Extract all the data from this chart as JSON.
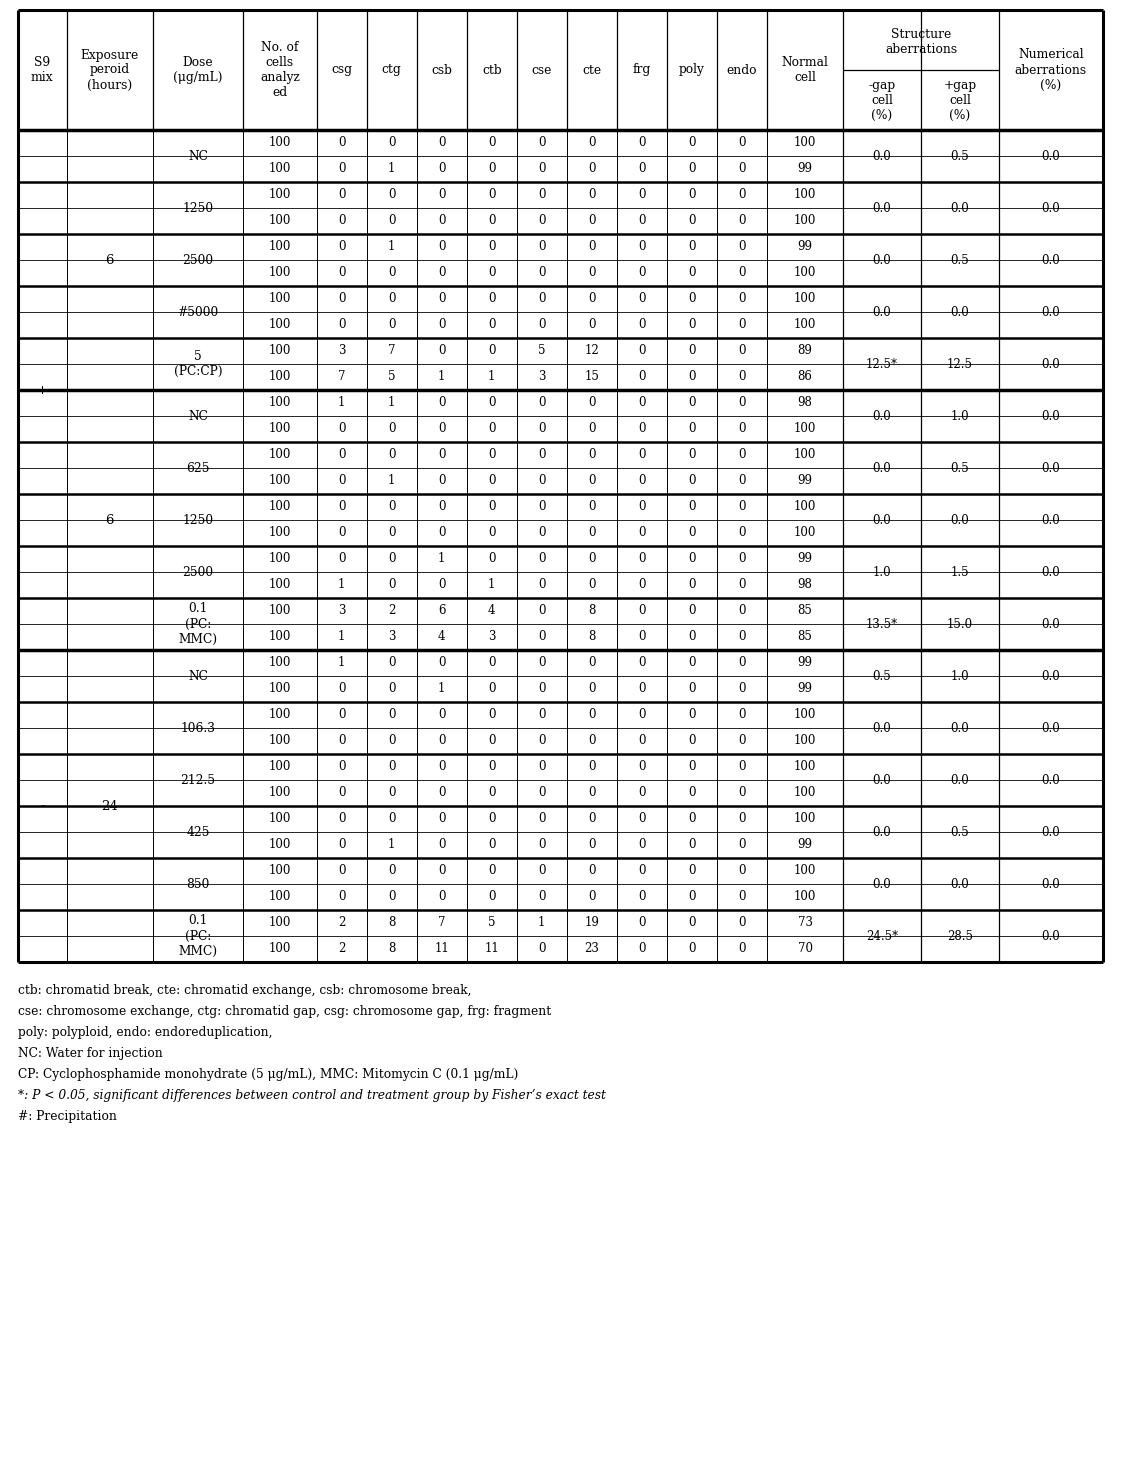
{
  "footnotes": [
    "ctb: chromatid break, cte: chromatid exchange, csb: chromosome break,",
    "cse: chromosome exchange, ctg: chromatid gap, csg: chromosome gap, frg: fragment",
    "poly: polyploid, endo: endoreduplication,",
    "NC: Water for injection",
    "CP: Cyclophosphamide monohydrate (5 μg/mL), MMC: Mitomycin C (0.1 μg/mL)",
    "*: P < 0.05, significant differences between control and treatment group by Fisher’s exact test",
    "#: Precipitation"
  ],
  "col_abbrevs": [
    "csg",
    "ctg",
    "csb",
    "ctb",
    "cse",
    "cte",
    "frg",
    "poly",
    "endo"
  ],
  "rows": [
    [
      "100",
      "0",
      "0",
      "0",
      "0",
      "0",
      "0",
      "0",
      "0",
      "0",
      "100"
    ],
    [
      "100",
      "0",
      "1",
      "0",
      "0",
      "0",
      "0",
      "0",
      "0",
      "0",
      "99"
    ],
    [
      "100",
      "0",
      "0",
      "0",
      "0",
      "0",
      "0",
      "0",
      "0",
      "0",
      "100"
    ],
    [
      "100",
      "0",
      "0",
      "0",
      "0",
      "0",
      "0",
      "0",
      "0",
      "0",
      "100"
    ],
    [
      "100",
      "0",
      "1",
      "0",
      "0",
      "0",
      "0",
      "0",
      "0",
      "0",
      "99"
    ],
    [
      "100",
      "0",
      "0",
      "0",
      "0",
      "0",
      "0",
      "0",
      "0",
      "0",
      "100"
    ],
    [
      "100",
      "0",
      "0",
      "0",
      "0",
      "0",
      "0",
      "0",
      "0",
      "0",
      "100"
    ],
    [
      "100",
      "0",
      "0",
      "0",
      "0",
      "0",
      "0",
      "0",
      "0",
      "0",
      "100"
    ],
    [
      "100",
      "3",
      "7",
      "0",
      "0",
      "5",
      "12",
      "0",
      "0",
      "0",
      "89"
    ],
    [
      "100",
      "7",
      "5",
      "1",
      "1",
      "3",
      "15",
      "0",
      "0",
      "0",
      "86"
    ],
    [
      "100",
      "1",
      "1",
      "0",
      "0",
      "0",
      "0",
      "0",
      "0",
      "0",
      "98"
    ],
    [
      "100",
      "0",
      "0",
      "0",
      "0",
      "0",
      "0",
      "0",
      "0",
      "0",
      "100"
    ],
    [
      "100",
      "0",
      "0",
      "0",
      "0",
      "0",
      "0",
      "0",
      "0",
      "0",
      "100"
    ],
    [
      "100",
      "0",
      "1",
      "0",
      "0",
      "0",
      "0",
      "0",
      "0",
      "0",
      "99"
    ],
    [
      "100",
      "0",
      "0",
      "0",
      "0",
      "0",
      "0",
      "0",
      "0",
      "0",
      "100"
    ],
    [
      "100",
      "0",
      "0",
      "0",
      "0",
      "0",
      "0",
      "0",
      "0",
      "0",
      "100"
    ],
    [
      "100",
      "0",
      "0",
      "1",
      "0",
      "0",
      "0",
      "0",
      "0",
      "0",
      "99"
    ],
    [
      "100",
      "1",
      "0",
      "0",
      "1",
      "0",
      "0",
      "0",
      "0",
      "0",
      "98"
    ],
    [
      "100",
      "3",
      "2",
      "6",
      "4",
      "0",
      "8",
      "0",
      "0",
      "0",
      "85"
    ],
    [
      "100",
      "1",
      "3",
      "4",
      "3",
      "0",
      "8",
      "0",
      "0",
      "0",
      "85"
    ],
    [
      "100",
      "1",
      "0",
      "0",
      "0",
      "0",
      "0",
      "0",
      "0",
      "0",
      "99"
    ],
    [
      "100",
      "0",
      "0",
      "1",
      "0",
      "0",
      "0",
      "0",
      "0",
      "0",
      "99"
    ],
    [
      "100",
      "0",
      "0",
      "0",
      "0",
      "0",
      "0",
      "0",
      "0",
      "0",
      "100"
    ],
    [
      "100",
      "0",
      "0",
      "0",
      "0",
      "0",
      "0",
      "0",
      "0",
      "0",
      "100"
    ],
    [
      "100",
      "0",
      "0",
      "0",
      "0",
      "0",
      "0",
      "0",
      "0",
      "0",
      "100"
    ],
    [
      "100",
      "0",
      "0",
      "0",
      "0",
      "0",
      "0",
      "0",
      "0",
      "0",
      "100"
    ],
    [
      "100",
      "0",
      "0",
      "0",
      "0",
      "0",
      "0",
      "0",
      "0",
      "0",
      "100"
    ],
    [
      "100",
      "0",
      "1",
      "0",
      "0",
      "0",
      "0",
      "0",
      "0",
      "0",
      "99"
    ],
    [
      "100",
      "0",
      "0",
      "0",
      "0",
      "0",
      "0",
      "0",
      "0",
      "0",
      "100"
    ],
    [
      "100",
      "0",
      "0",
      "0",
      "0",
      "0",
      "0",
      "0",
      "0",
      "0",
      "100"
    ],
    [
      "100",
      "2",
      "8",
      "7",
      "5",
      "1",
      "19",
      "0",
      "0",
      "0",
      "73"
    ],
    [
      "100",
      "2",
      "8",
      "11",
      "11",
      "0",
      "23",
      "0",
      "0",
      "0",
      "70"
    ]
  ],
  "s9_groups": [
    [
      0,
      19,
      "+"
    ],
    [
      20,
      31,
      "-"
    ]
  ],
  "exp_groups": [
    [
      0,
      9,
      "6"
    ],
    [
      10,
      19,
      "6"
    ],
    [
      20,
      31,
      "24"
    ]
  ],
  "dose_groups": [
    [
      0,
      1,
      "NC"
    ],
    [
      2,
      3,
      "1250"
    ],
    [
      4,
      5,
      "2500"
    ],
    [
      6,
      7,
      "#5000"
    ],
    [
      8,
      9,
      "5\n(PC:CP)"
    ],
    [
      10,
      11,
      "NC"
    ],
    [
      12,
      13,
      "625"
    ],
    [
      14,
      15,
      "1250"
    ],
    [
      16,
      17,
      "2500"
    ],
    [
      18,
      19,
      "0.1\n(PC:\nMMC)"
    ],
    [
      20,
      21,
      "NC"
    ],
    [
      22,
      23,
      "106.3"
    ],
    [
      24,
      25,
      "212.5"
    ],
    [
      26,
      27,
      "425"
    ],
    [
      28,
      29,
      "850"
    ],
    [
      30,
      31,
      "0.1\n(PC:\nMMC)"
    ]
  ],
  "summary_data": [
    [
      0,
      1,
      "0.0",
      "0.5",
      "0.0"
    ],
    [
      2,
      3,
      "0.0",
      "0.0",
      "0.0"
    ],
    [
      4,
      5,
      "0.0",
      "0.5",
      "0.0"
    ],
    [
      6,
      7,
      "0.0",
      "0.0",
      "0.0"
    ],
    [
      8,
      9,
      "12.5*",
      "12.5",
      "0.0"
    ],
    [
      10,
      11,
      "0.0",
      "1.0",
      "0.0"
    ],
    [
      12,
      13,
      "0.0",
      "0.5",
      "0.0"
    ],
    [
      14,
      15,
      "0.0",
      "0.0",
      "0.0"
    ],
    [
      16,
      17,
      "1.0",
      "1.5",
      "0.0"
    ],
    [
      18,
      19,
      "13.5*",
      "15.0",
      "0.0"
    ],
    [
      20,
      21,
      "0.5",
      "1.0",
      "0.0"
    ],
    [
      22,
      23,
      "0.0",
      "0.0",
      "0.0"
    ],
    [
      24,
      25,
      "0.0",
      "0.0",
      "0.0"
    ],
    [
      26,
      27,
      "0.0",
      "0.5",
      "0.0"
    ],
    [
      28,
      29,
      "0.0",
      "0.0",
      "0.0"
    ],
    [
      30,
      31,
      "24.5*",
      "28.5",
      "0.0"
    ]
  ],
  "major_dividers_after_rows": [
    9,
    19
  ],
  "dose_dividers_after_rows": [
    1,
    3,
    5,
    7,
    11,
    13,
    15,
    17,
    21,
    23,
    25,
    27,
    29
  ]
}
